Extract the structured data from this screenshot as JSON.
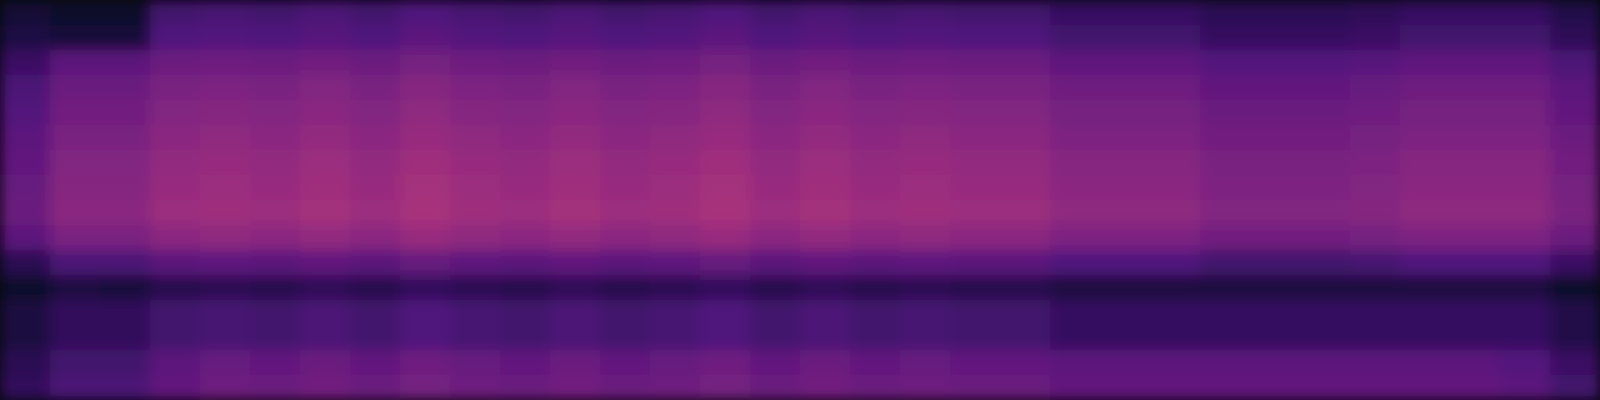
{
  "chart_data": {
    "type": "heatmap",
    "tick_labels": false,
    "zlim": [
      0,
      100
    ],
    "cells": [
      [
        10,
        8,
        8,
        22,
        23,
        22,
        24,
        22,
        25,
        23,
        22,
        24,
        22,
        23,
        25,
        22,
        24,
        22,
        23,
        22,
        22,
        19,
        19,
        19,
        16,
        16,
        16,
        17,
        19,
        19,
        19,
        14
      ],
      [
        13,
        11,
        11,
        25,
        26,
        25,
        27,
        25,
        28,
        26,
        25,
        27,
        25,
        26,
        28,
        25,
        27,
        25,
        26,
        25,
        25,
        22,
        22,
        22,
        19,
        19,
        19,
        20,
        22,
        22,
        22,
        17
      ],
      [
        20,
        28,
        28,
        32,
        33,
        32,
        34,
        32,
        35,
        33,
        32,
        34,
        32,
        33,
        35,
        32,
        34,
        32,
        33,
        32,
        32,
        29,
        29,
        29,
        26,
        26,
        26,
        27,
        29,
        29,
        29,
        24
      ],
      [
        24,
        32,
        32,
        36,
        37,
        36,
        38,
        36,
        39,
        37,
        36,
        38,
        36,
        37,
        39,
        36,
        38,
        36,
        37,
        36,
        36,
        33,
        33,
        33,
        30,
        30,
        30,
        31,
        33,
        33,
        33,
        28
      ],
      [
        26,
        34,
        34,
        38,
        39,
        38,
        40,
        38,
        41,
        39,
        38,
        40,
        38,
        39,
        41,
        38,
        40,
        38,
        39,
        38,
        38,
        35,
        35,
        35,
        32,
        32,
        32,
        33,
        35,
        35,
        35,
        30
      ],
      [
        28,
        36,
        36,
        40,
        41,
        40,
        42,
        40,
        43,
        41,
        40,
        42,
        40,
        41,
        43,
        40,
        42,
        40,
        41,
        40,
        40,
        37,
        37,
        37,
        34,
        34,
        34,
        35,
        37,
        37,
        37,
        32
      ],
      [
        30,
        38,
        38,
        42,
        43,
        42,
        44,
        42,
        45,
        43,
        42,
        44,
        42,
        43,
        45,
        42,
        44,
        42,
        43,
        42,
        42,
        39,
        39,
        39,
        36,
        36,
        36,
        37,
        39,
        39,
        39,
        34
      ],
      [
        31,
        39,
        39,
        43,
        44,
        43,
        45,
        43,
        46,
        44,
        43,
        45,
        43,
        44,
        46,
        43,
        45,
        43,
        44,
        43,
        43,
        40,
        40,
        40,
        37,
        37,
        37,
        38,
        40,
        40,
        40,
        35
      ],
      [
        32,
        40,
        40,
        44,
        45,
        44,
        46,
        44,
        47,
        45,
        44,
        46,
        44,
        45,
        47,
        44,
        46,
        44,
        45,
        44,
        44,
        41,
        41,
        41,
        38,
        38,
        38,
        39,
        41,
        41,
        41,
        36
      ],
      [
        28,
        36,
        36,
        40,
        41,
        40,
        42,
        40,
        43,
        41,
        40,
        42,
        40,
        41,
        43,
        40,
        42,
        40,
        41,
        40,
        40,
        37,
        37,
        37,
        34,
        34,
        34,
        35,
        37,
        37,
        37,
        32
      ],
      [
        16,
        24,
        24,
        28,
        29,
        28,
        30,
        28,
        31,
        29,
        28,
        30,
        28,
        29,
        31,
        28,
        30,
        28,
        29,
        28,
        28,
        25,
        25,
        25,
        22,
        22,
        22,
        23,
        25,
        25,
        25,
        20
      ],
      [
        8,
        12,
        11,
        15,
        16,
        15,
        17,
        15,
        18,
        16,
        15,
        17,
        15,
        16,
        18,
        15,
        17,
        15,
        16,
        15,
        15,
        12,
        12,
        12,
        12,
        12,
        12,
        12,
        12,
        12,
        12,
        8
      ],
      [
        12,
        18,
        18,
        22,
        23,
        22,
        24,
        22,
        25,
        23,
        22,
        24,
        22,
        23,
        25,
        22,
        24,
        22,
        23,
        22,
        22,
        19,
        19,
        19,
        19,
        19,
        19,
        19,
        19,
        19,
        19,
        14
      ],
      [
        12,
        18,
        18,
        22,
        23,
        22,
        24,
        22,
        25,
        23,
        22,
        24,
        22,
        23,
        25,
        22,
        24,
        22,
        23,
        22,
        22,
        19,
        19,
        19,
        19,
        19,
        19,
        19,
        19,
        19,
        19,
        14
      ],
      [
        16,
        22,
        22,
        28,
        31,
        30,
        32,
        30,
        33,
        31,
        30,
        32,
        30,
        31,
        33,
        30,
        32,
        30,
        31,
        30,
        30,
        28,
        28,
        28,
        28,
        28,
        28,
        28,
        28,
        28,
        26,
        20
      ],
      [
        18,
        24,
        24,
        30,
        33,
        32,
        34,
        32,
        35,
        33,
        32,
        34,
        32,
        33,
        35,
        32,
        34,
        32,
        33,
        32,
        32,
        30,
        30,
        30,
        30,
        30,
        30,
        30,
        30,
        30,
        28,
        22
      ]
    ]
  }
}
